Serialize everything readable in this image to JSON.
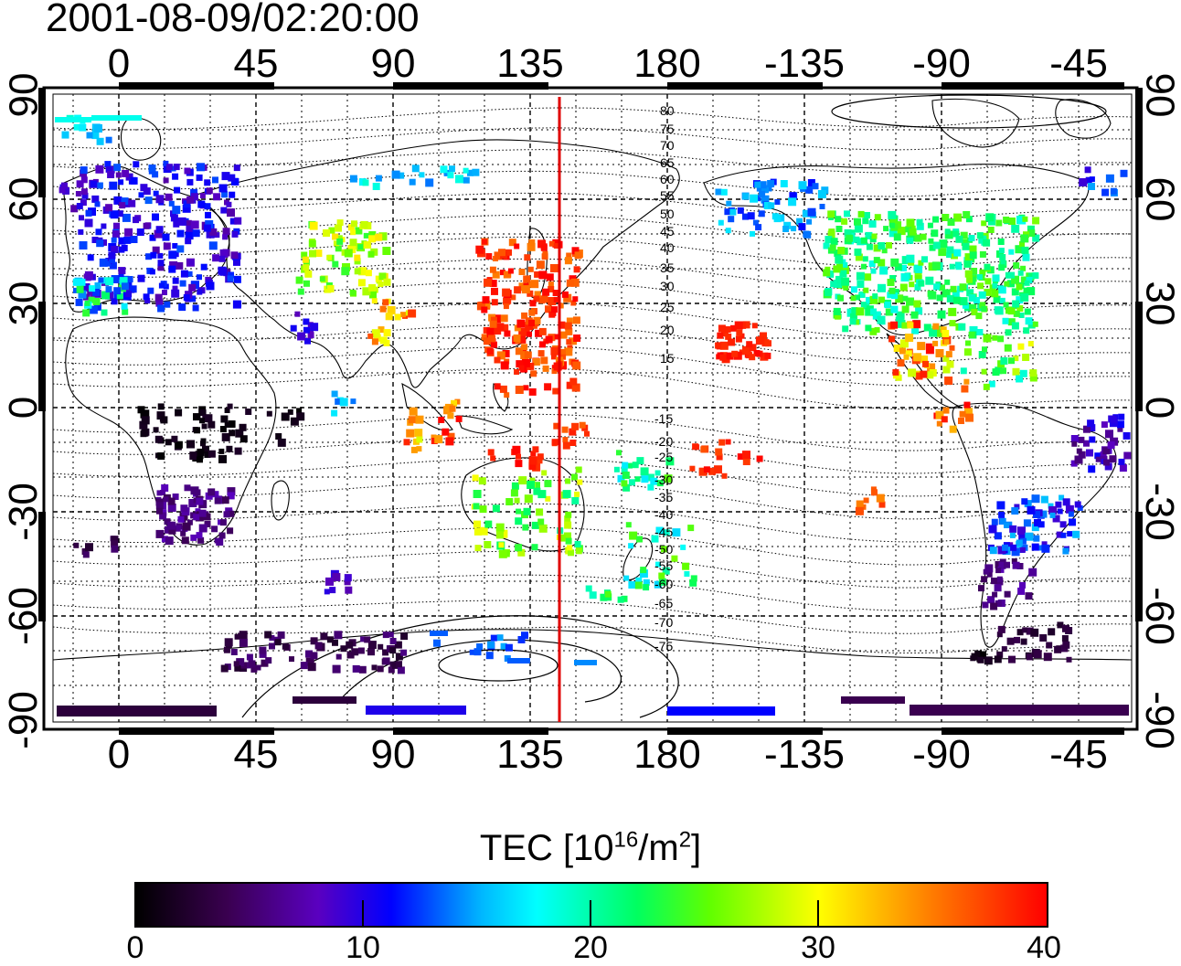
{
  "timestamp": "2001-08-09/02:20:00",
  "axes": {
    "lon_labels": [
      "0",
      "45",
      "90",
      "135",
      "180",
      "-135",
      "-90",
      "-45"
    ],
    "lat_labels": [
      "90",
      "60",
      "30",
      "0",
      "-30",
      "-60",
      "-90"
    ]
  },
  "contour_labels": {
    "north": [
      "80",
      "75",
      "70",
      "65",
      "60",
      "55",
      "50",
      "45",
      "40",
      "35",
      "30",
      "25",
      "20",
      "15"
    ],
    "south": [
      "-15",
      "-20",
      "-25",
      "-30",
      "-35",
      "-40",
      "-45",
      "-50",
      "-55",
      "-60",
      "-65",
      "-70",
      "-75"
    ]
  },
  "colorbar": {
    "title": "TEC  [10",
    "title_exp": "16",
    "title_mid": "/m",
    "title_exp2": "2",
    "title_end": "]",
    "ticks": [
      "0",
      "10",
      "20",
      "30",
      "40"
    ],
    "range": [
      0,
      40
    ]
  },
  "colors": {
    "meridian_line": "#e00000",
    "frame": "#000000"
  }
}
